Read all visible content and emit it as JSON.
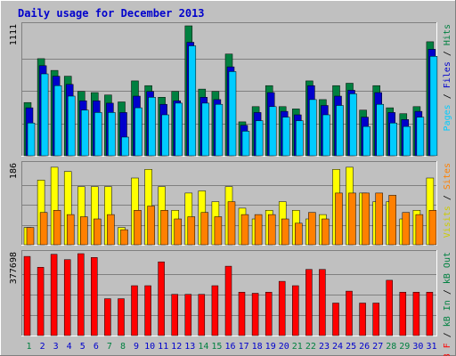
{
  "chart_data": [
    {
      "type": "bar",
      "panel": "hits-files-pages",
      "title": "Daily usage for December 2013",
      "categories": [
        "1",
        "2",
        "3",
        "4",
        "5",
        "6",
        "7",
        "8",
        "9",
        "10",
        "11",
        "12",
        "13",
        "14",
        "15",
        "16",
        "17",
        "18",
        "19",
        "20",
        "21",
        "22",
        "23",
        "24",
        "25",
        "26",
        "27",
        "28",
        "29",
        "30",
        "31"
      ],
      "y_max_label": "1111",
      "ylim": [
        0,
        1111
      ],
      "right_axis_labels": [
        {
          "text": "Pages",
          "color": "#00ccff"
        },
        {
          "text": " / ",
          "color": "#000000"
        },
        {
          "text": "Files",
          "color": "#0000cc"
        },
        {
          "text": " / ",
          "color": "#000000"
        },
        {
          "text": "Hits",
          "color": "#008040"
        }
      ],
      "series": [
        {
          "name": "Hits",
          "color": "#008040",
          "values": [
            455,
            830,
            730,
            680,
            550,
            540,
            520,
            460,
            640,
            600,
            500,
            550,
            1111,
            570,
            550,
            870,
            290,
            420,
            600,
            420,
            400,
            640,
            480,
            600,
            620,
            390,
            600,
            410,
            360,
            420,
            975
          ]
        },
        {
          "name": "Files",
          "color": "#0000cc",
          "values": [
            410,
            770,
            680,
            610,
            470,
            470,
            450,
            370,
            510,
            550,
            440,
            470,
            970,
            500,
            480,
            760,
            260,
            370,
            540,
            380,
            350,
            600,
            430,
            510,
            560,
            330,
            540,
            370,
            310,
            380,
            910
          ]
        },
        {
          "name": "Pages",
          "color": "#00ccff",
          "values": [
            280,
            700,
            600,
            510,
            390,
            370,
            370,
            160,
            410,
            500,
            350,
            450,
            940,
            450,
            440,
            720,
            210,
            300,
            420,
            330,
            300,
            480,
            350,
            430,
            530,
            250,
            440,
            280,
            250,
            330,
            850
          ]
        }
      ]
    },
    {
      "type": "bar",
      "panel": "visits-sites",
      "categories": [
        "1",
        "2",
        "3",
        "4",
        "5",
        "6",
        "7",
        "8",
        "9",
        "10",
        "11",
        "12",
        "13",
        "14",
        "15",
        "16",
        "17",
        "18",
        "19",
        "20",
        "21",
        "22",
        "23",
        "24",
        "25",
        "26",
        "27",
        "28",
        "29",
        "30",
        "31"
      ],
      "y_max_label": "186",
      "ylim": [
        0,
        186
      ],
      "right_axis_labels": [
        {
          "text": "Visits",
          "color": "#cccc00"
        },
        {
          "text": " / ",
          "color": "#000000"
        },
        {
          "text": "Sites",
          "color": "#ff8000"
        }
      ],
      "series": [
        {
          "name": "Visits",
          "color": "#ffff00",
          "values": [
            40,
            150,
            180,
            170,
            135,
            135,
            135,
            40,
            155,
            175,
            135,
            80,
            120,
            125,
            100,
            135,
            85,
            60,
            80,
            100,
            80,
            60,
            70,
            175,
            180,
            120,
            100,
            100,
            60,
            80,
            155
          ]
        },
        {
          "name": "Sites",
          "color": "#ff8000",
          "values": [
            40,
            75,
            80,
            70,
            65,
            60,
            70,
            35,
            80,
            90,
            80,
            60,
            65,
            75,
            65,
            100,
            70,
            70,
            70,
            60,
            50,
            75,
            60,
            120,
            120,
            120,
            120,
            115,
            75,
            70,
            80
          ]
        }
      ]
    },
    {
      "type": "bar",
      "panel": "kbytes",
      "categories": [
        "1",
        "2",
        "3",
        "4",
        "5",
        "6",
        "7",
        "8",
        "9",
        "10",
        "11",
        "12",
        "13",
        "14",
        "15",
        "16",
        "17",
        "18",
        "19",
        "20",
        "21",
        "22",
        "23",
        "24",
        "25",
        "26",
        "27",
        "28",
        "29",
        "30",
        "31"
      ],
      "y_max_label": "377698",
      "ylim": [
        0,
        377698
      ],
      "right_axis_labels": [
        {
          "text": "kB F",
          "color": "#ff0000"
        },
        {
          "text": " / ",
          "color": "#000000"
        },
        {
          "text": "kB In",
          "color": "#008040"
        },
        {
          "text": " / ",
          "color": "#000000"
        },
        {
          "text": "kB Out",
          "color": "#008040"
        }
      ],
      "series": [
        {
          "name": "kB F",
          "color": "#ff0000",
          "values": [
            365000,
            315000,
            375000,
            350000,
            377698,
            360000,
            170000,
            170000,
            230000,
            230000,
            340000,
            190000,
            190000,
            190000,
            230000,
            320000,
            200000,
            195000,
            200000,
            250000,
            230000,
            305000,
            305000,
            150000,
            205000,
            150000,
            150000,
            255000,
            200000,
            200000,
            200000
          ]
        }
      ]
    }
  ],
  "x_axis": {
    "weekend_color": "#008040",
    "weekday_color": "#0000cc",
    "weekend_days": [
      "1",
      "7",
      "8",
      "14",
      "15",
      "21",
      "22",
      "28",
      "29"
    ]
  }
}
